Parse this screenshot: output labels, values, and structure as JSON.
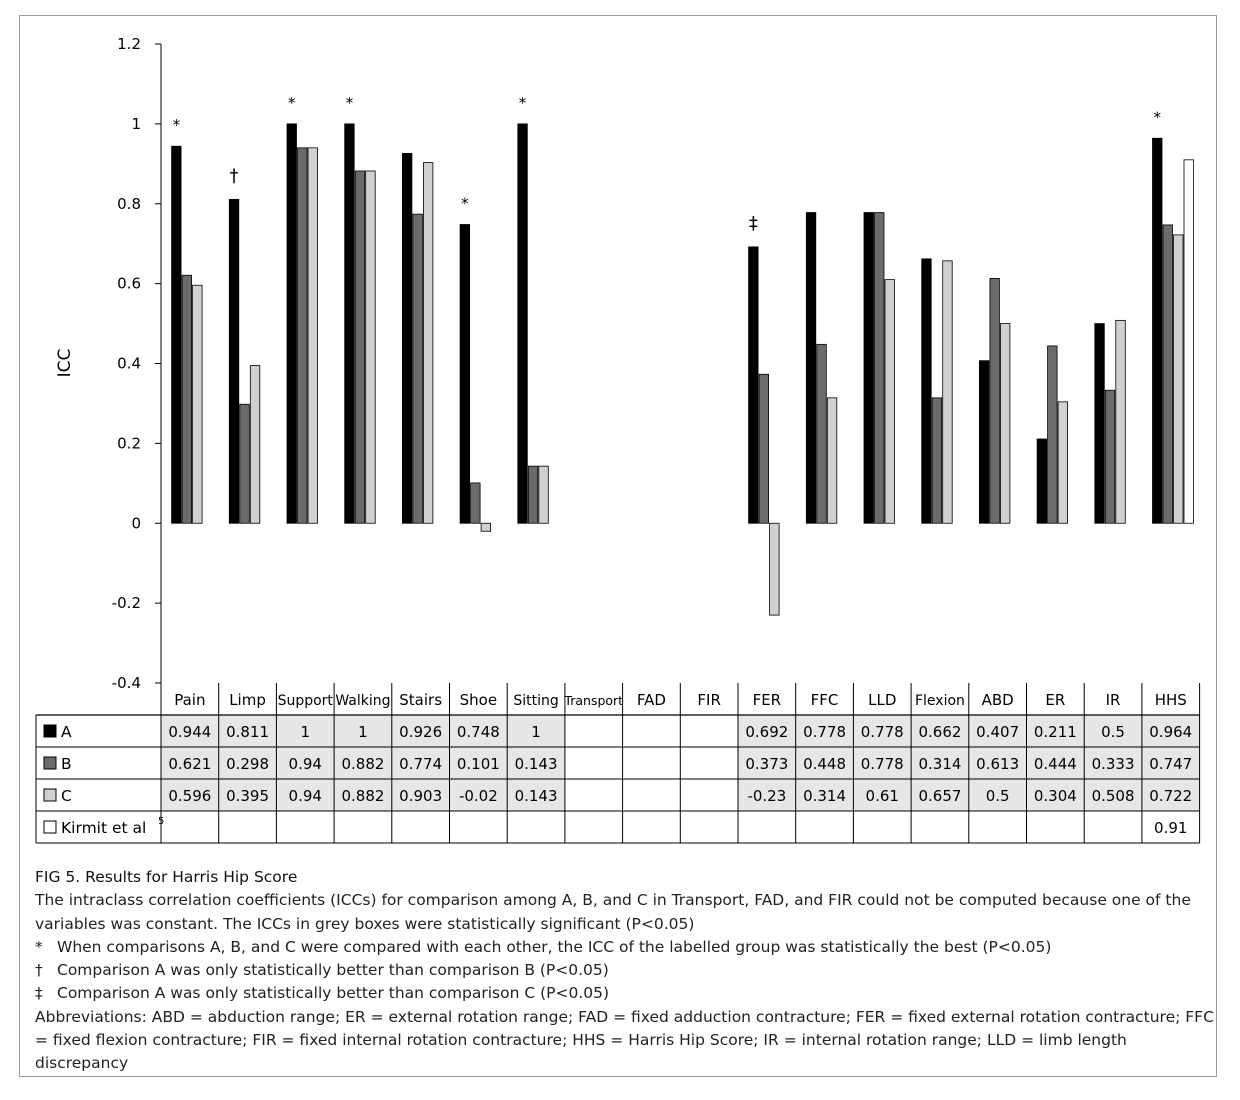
{
  "chart_data": {
    "type": "bar",
    "ylabel": "ICC",
    "ylim": [
      -0.4,
      1.2
    ],
    "yticks": [
      "1.2",
      "1",
      "0.8",
      "0.6",
      "0.4",
      "0.2",
      "0",
      "-0.2",
      "-0.4"
    ],
    "categories": [
      "Pain",
      "Limp",
      "Support",
      "Walking",
      "Stairs",
      "Shoe",
      "Sitting",
      "Transport",
      "FAD",
      "FIR",
      "FER",
      "FFC",
      "LLD",
      "Flexion",
      "ABD",
      "ER",
      "IR",
      "HHS"
    ],
    "series": [
      {
        "name": "A",
        "color": "#000000",
        "values": [
          0.944,
          0.811,
          1,
          1,
          0.926,
          0.748,
          1,
          null,
          null,
          null,
          0.692,
          0.778,
          0.778,
          0.662,
          0.407,
          0.211,
          0.5,
          0.964
        ],
        "labels": [
          "0.944",
          "0.811",
          "1",
          "1",
          "0.926",
          "0.748",
          "1",
          "",
          "",
          "",
          "0.692",
          "0.778",
          "0.778",
          "0.662",
          "0.407",
          "0.211",
          "0.5",
          "0.964"
        ]
      },
      {
        "name": "B",
        "color": "#6b6b6b",
        "values": [
          0.621,
          0.298,
          0.94,
          0.882,
          0.774,
          0.101,
          0.143,
          null,
          null,
          null,
          0.373,
          0.448,
          0.778,
          0.314,
          0.613,
          0.444,
          0.333,
          0.747
        ],
        "labels": [
          "0.621",
          "0.298",
          "0.94",
          "0.882",
          "0.774",
          "0.101",
          "0.143",
          "",
          "",
          "",
          "0.373",
          "0.448",
          "0.778",
          "0.314",
          "0.613",
          "0.444",
          "0.333",
          "0.747"
        ]
      },
      {
        "name": "C",
        "color": "#d0d0d0",
        "values": [
          0.596,
          0.395,
          0.94,
          0.882,
          0.903,
          -0.02,
          0.143,
          null,
          null,
          null,
          -0.23,
          0.314,
          0.61,
          0.657,
          0.5,
          0.304,
          0.508,
          0.722
        ],
        "labels": [
          "0.596",
          "0.395",
          "0.94",
          "0.882",
          "0.903",
          "-0.02",
          "0.143",
          "",
          "",
          "",
          "-0.23",
          "0.314",
          "0.61",
          "0.657",
          "0.5",
          "0.304",
          "0.508",
          "0.722"
        ]
      },
      {
        "name": "Kirmit et al5",
        "color": "#ffffff",
        "values": [
          null,
          null,
          null,
          null,
          null,
          null,
          null,
          null,
          null,
          null,
          null,
          null,
          null,
          null,
          null,
          null,
          null,
          0.91
        ],
        "labels": [
          "",
          "",
          "",
          "",
          "",
          "",
          "",
          "",
          "",
          "",
          "",
          "",
          "",
          "",
          "",
          "",
          "",
          "0.91"
        ]
      }
    ],
    "significant_cells": {
      "A": [
        "Pain",
        "Limp",
        "Support",
        "Walking",
        "Stairs",
        "Shoe",
        "Sitting",
        "FER",
        "FFC",
        "LLD",
        "Flexion",
        "ABD",
        "ER",
        "IR",
        "HHS"
      ],
      "B": [
        "Pain",
        "Limp",
        "Support",
        "Walking",
        "Stairs",
        "Shoe",
        "Sitting",
        "FER",
        "FFC",
        "LLD",
        "Flexion",
        "ABD",
        "ER",
        "IR",
        "HHS"
      ],
      "C": [
        "Pain",
        "Limp",
        "Support",
        "Walking",
        "Stairs",
        "Shoe",
        "Sitting",
        "FER",
        "FFC",
        "LLD",
        "Flexion",
        "ABD",
        "ER",
        "IR",
        "HHS"
      ]
    },
    "annotations": [
      {
        "category": "Pain",
        "symbol": "*"
      },
      {
        "category": "Limp",
        "symbol": "†"
      },
      {
        "category": "Support",
        "symbol": "*"
      },
      {
        "category": "Walking",
        "symbol": "*"
      },
      {
        "category": "Shoe",
        "symbol": "*"
      },
      {
        "category": "Sitting",
        "symbol": "*"
      },
      {
        "category": "FER",
        "symbol": "‡"
      },
      {
        "category": "HHS",
        "symbol": "*"
      }
    ],
    "legend_placement": "table-left",
    "grid": false,
    "table_highlight_color": "#e6e6e6"
  },
  "caption": {
    "title": "FIG 5. Results for Harris Hip Score",
    "body": "The intraclass correlation coefficients (ICCs) for comparison among A, B, and C in Transport, FAD, and FIR could not be computed because one of the variables was constant. The ICCs in grey boxes were statistically significant (P<0.05)",
    "notes": [
      {
        "symbol": "*",
        "text": "When comparisons A, B, and C were compared with each other, the ICC of the labelled group was statistically the best (P<0.05)"
      },
      {
        "symbol": "†",
        "text": "Comparison A was only statistically better than comparison B (P<0.05)"
      },
      {
        "symbol": "‡",
        "text": "Comparison A was only statistically better than comparison C (P<0.05)"
      }
    ],
    "abbreviations": "Abbreviations: ABD = abduction range; ER = external rotation range; FAD = fixed adduction contracture; FER = fixed external rotation contracture; FFC = fixed flexion contracture; FIR = fixed internal rotation contracture; HHS = Harris Hip Score; IR = internal rotation range; LLD = limb length discrepancy"
  }
}
